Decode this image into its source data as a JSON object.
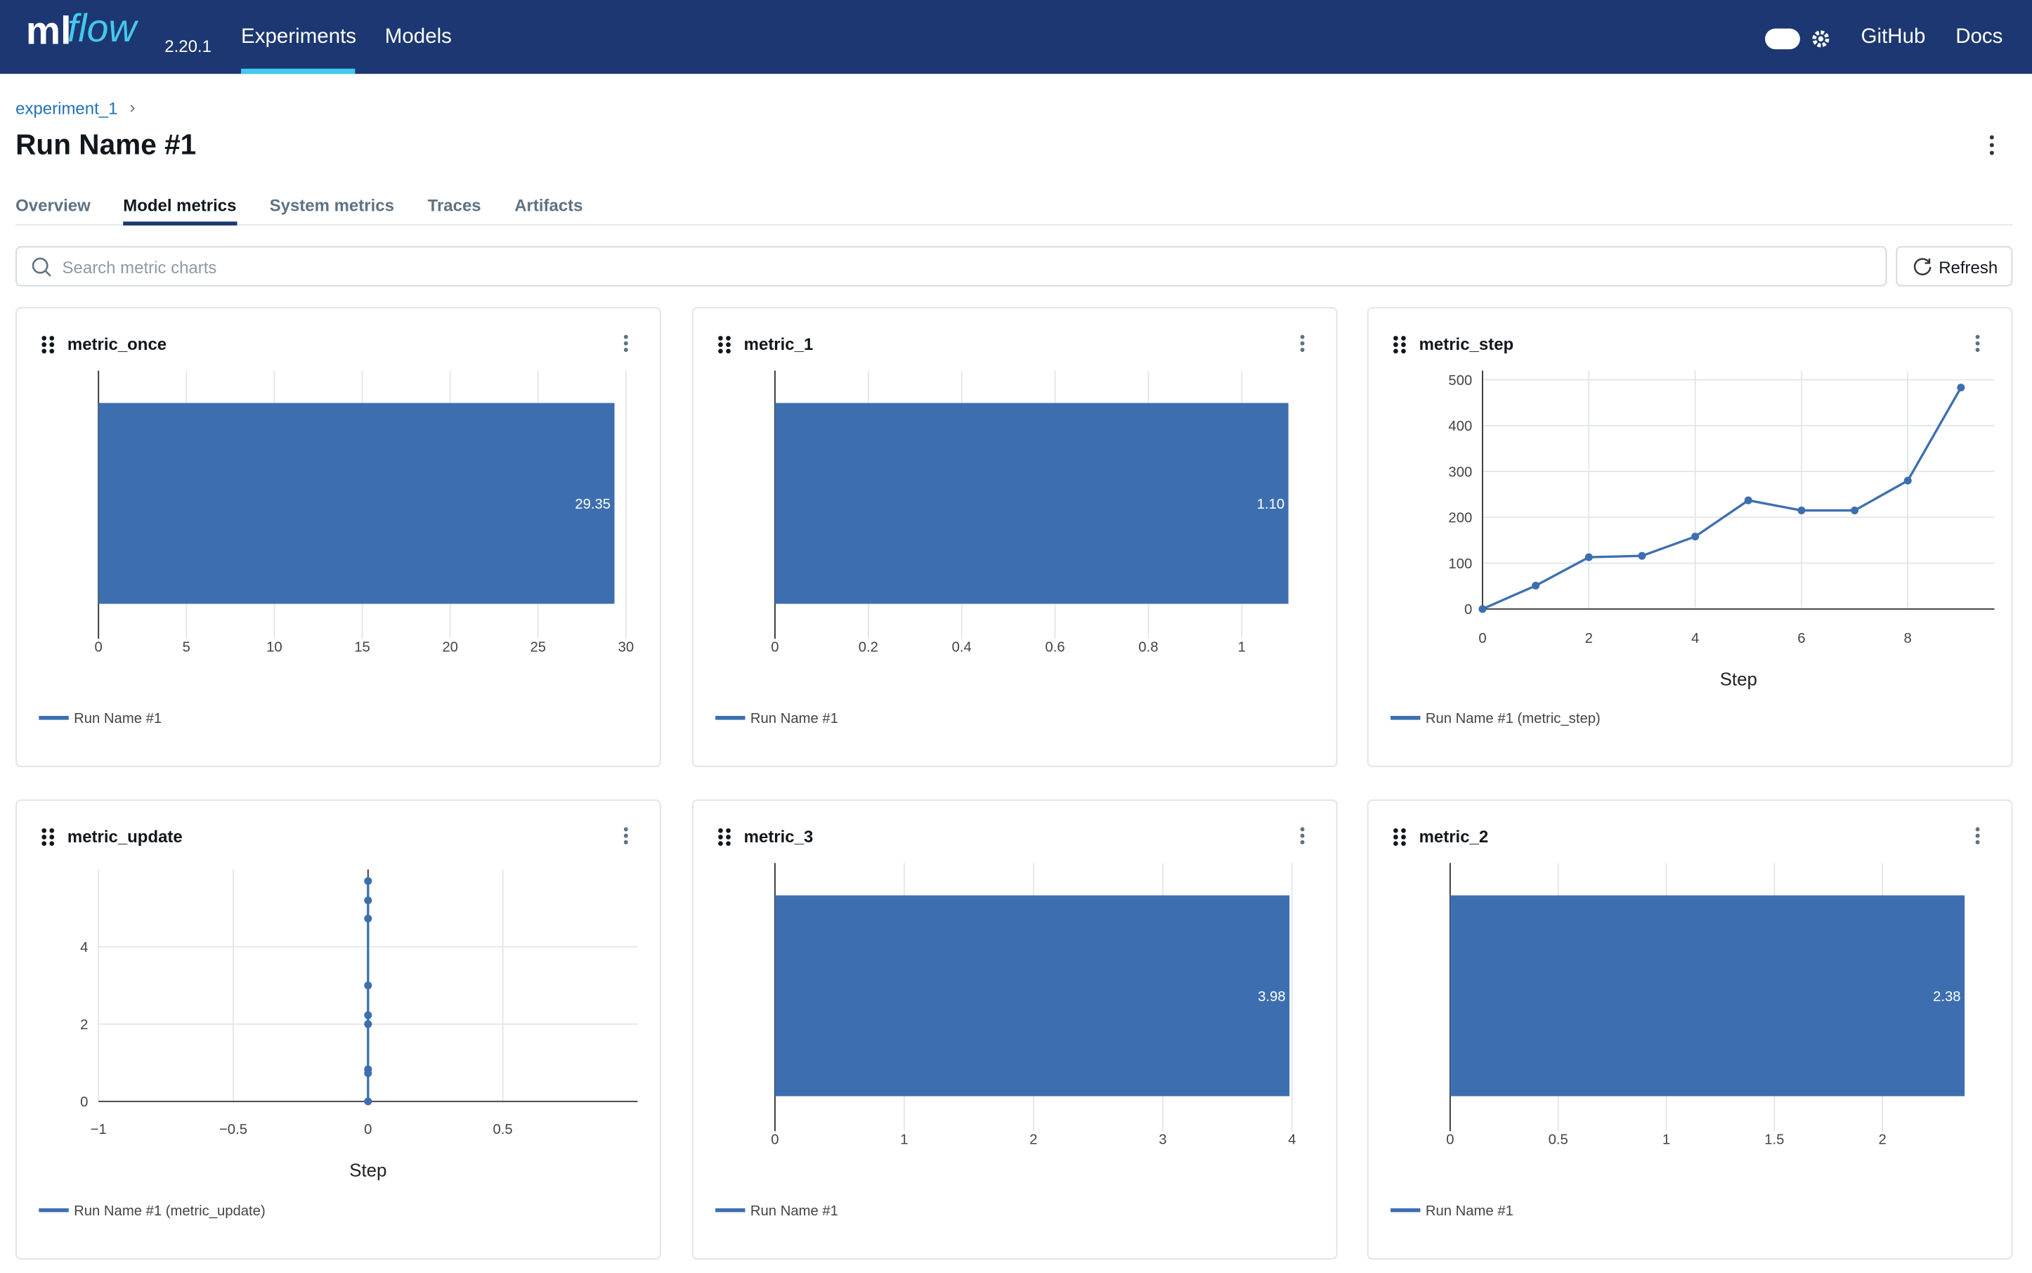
{
  "header": {
    "logo_ml": "ml",
    "logo_flow": "flow",
    "version": "2.20.1",
    "nav": [
      "Experiments",
      "Models"
    ],
    "links": [
      "GitHub",
      "Docs"
    ]
  },
  "breadcrumb": "experiment_1",
  "title": "Run Name #1",
  "tabs": [
    "Overview",
    "Model metrics",
    "System metrics",
    "Traces",
    "Artifacts"
  ],
  "search_placeholder": "Search metric charts",
  "refresh": "Refresh",
  "chart_data": [
    {
      "type": "bar",
      "title": "metric_once",
      "series": [
        {
          "name": "Run Name #1",
          "color": "#3d6fb0",
          "values": [
            29.35
          ]
        }
      ],
      "xlim": [
        0,
        30
      ],
      "xticks": [
        0,
        5,
        10,
        15,
        20,
        25,
        30
      ],
      "grid": true
    },
    {
      "type": "bar",
      "title": "metric_1",
      "series": [
        {
          "name": "Run Name #1",
          "color": "#3d6fb0",
          "values": [
            1.1
          ],
          "value_labels": [
            "1.10"
          ]
        }
      ],
      "xlim": [
        0,
        1.13
      ],
      "xticks": [
        0,
        0.2,
        0.4,
        0.6,
        0.8,
        1
      ],
      "grid": true
    },
    {
      "type": "line",
      "title": "metric_step",
      "x": [
        0,
        1,
        2,
        3,
        4,
        5,
        6,
        7,
        8,
        9
      ],
      "series": [
        {
          "name": "Run Name #1 (metric_step)",
          "color": "#3d6fb0",
          "values": [
            0,
            51,
            113,
            116,
            158,
            237,
            215,
            215,
            280,
            483
          ]
        }
      ],
      "xlim": [
        0,
        9.63
      ],
      "xticks": [
        0,
        2,
        4,
        6,
        8
      ],
      "ylim": [
        0,
        520
      ],
      "yticks": [
        0,
        100,
        200,
        300,
        400,
        500
      ],
      "xlabel": "Step",
      "grid": true
    },
    {
      "type": "line",
      "title": "metric_update",
      "x": [
        0,
        0,
        0,
        0,
        0,
        0,
        0,
        0,
        0
      ],
      "series": [
        {
          "name": "Run Name #1 (metric_update)",
          "color": "#3d6fb0",
          "values": [
            0,
            0.73,
            0.83,
            2,
            2.23,
            3,
            4.73,
            5.2,
            5.7
          ]
        }
      ],
      "xlim": [
        -1,
        1
      ],
      "xticks": [
        {
          "value": -1,
          "label": "−1"
        },
        {
          "value": -0.5,
          "label": "−0.5"
        },
        0,
        0.5
      ],
      "ylim": [
        0,
        6
      ],
      "yticks": [
        0,
        2,
        4
      ],
      "xlabel": "Step",
      "grid": true
    },
    {
      "type": "bar",
      "title": "metric_3",
      "series": [
        {
          "name": "Run Name #1",
          "color": "#3d6fb0",
          "values": [
            3.98
          ]
        }
      ],
      "xlim": [
        0,
        4.08
      ],
      "xticks": [
        0,
        1,
        2,
        3,
        4
      ],
      "grid": true
    },
    {
      "type": "bar",
      "title": "metric_2",
      "series": [
        {
          "name": "Run Name #1",
          "color": "#3d6fb0",
          "values": [
            2.38
          ]
        }
      ],
      "xlim": [
        0,
        2.44
      ],
      "xticks": [
        0,
        0.5,
        1,
        1.5,
        2
      ],
      "grid": true
    }
  ]
}
